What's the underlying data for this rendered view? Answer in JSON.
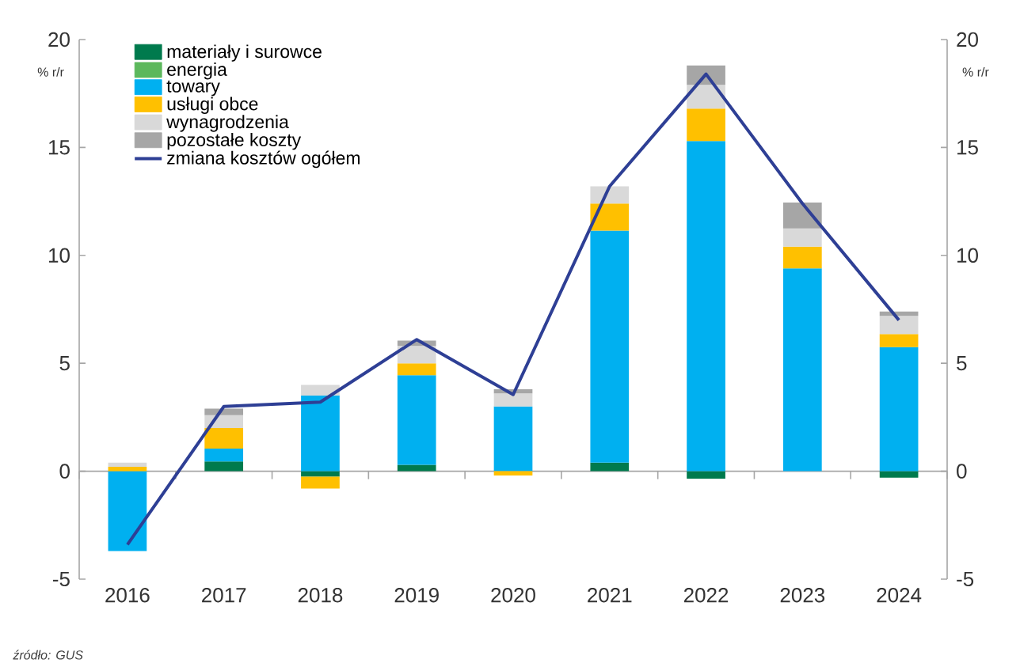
{
  "chart_data": {
    "type": "bar",
    "stacked": true,
    "legend": "top left",
    "ylabel": "% r/r",
    "y2label": "% r/r",
    "categories": [
      "2016",
      "2017",
      "2018",
      "2019",
      "2020",
      "2021",
      "2022",
      "2023",
      "2024"
    ],
    "series": [
      {
        "name": "materiały i surowce",
        "color": "#007a4d",
        "values": [
          0,
          0.45,
          -0.25,
          0.3,
          0,
          0.4,
          -0.35,
          0,
          -0.3
        ]
      },
      {
        "name": "energia",
        "color": "#5cb85c",
        "values": [
          0,
          0,
          0,
          0,
          0,
          0,
          0,
          0,
          0
        ]
      },
      {
        "name": "towary",
        "color": "#00b0f0",
        "values": [
          -3.7,
          0.6,
          3.5,
          4.15,
          3.0,
          10.75,
          15.3,
          9.4,
          5.75
        ]
      },
      {
        "name": "usługi obce",
        "color": "#ffc000",
        "values": [
          0.2,
          0.95,
          -0.55,
          0.55,
          -0.2,
          1.25,
          1.5,
          1.0,
          0.6
        ]
      },
      {
        "name": "wynagrodzenia",
        "color": "#d9d9d9",
        "values": [
          0.2,
          0.6,
          0.5,
          0.8,
          0.6,
          0.8,
          1.1,
          0.85,
          0.85
        ]
      },
      {
        "name": "pozostałe koszty",
        "color": "#a6a6a6",
        "values": [
          0,
          0.3,
          0,
          0.25,
          0.2,
          0,
          0.9,
          1.2,
          0.2
        ]
      },
      {
        "name": "zmiana kosztów ogółem",
        "type": "line",
        "color": "#2e3f95",
        "values": [
          -3.4,
          3.0,
          3.2,
          6.1,
          3.55,
          13.2,
          18.4,
          12.4,
          7.0
        ]
      }
    ],
    "ylim": [
      -5,
      20
    ],
    "yticks": [
      -5,
      0,
      5,
      10,
      15,
      20
    ],
    "y2lim": [
      -5,
      20
    ],
    "y2ticks": [
      -5,
      0,
      5,
      10,
      15,
      20
    ],
    "annotations": [
      "źródło: GUS"
    ]
  }
}
